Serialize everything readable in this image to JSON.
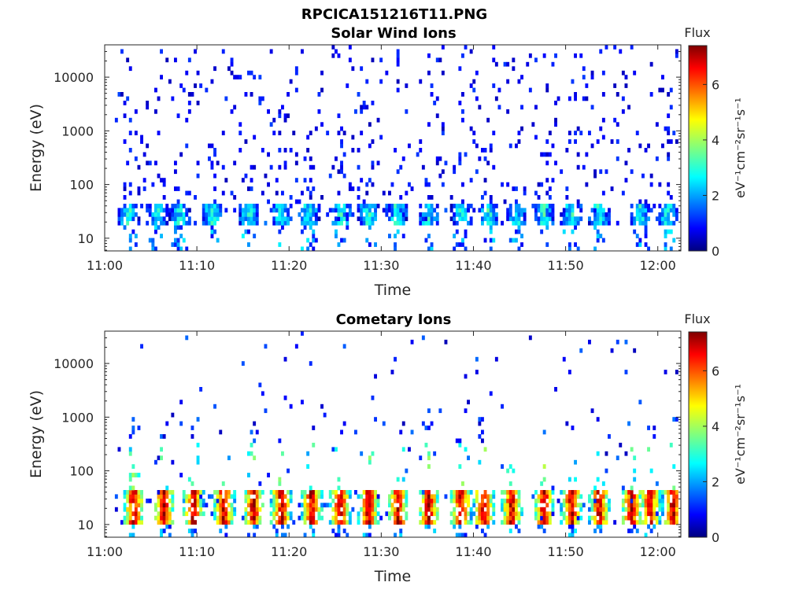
{
  "figure_title": "RPCICA151216T11.PNG",
  "chart_data": [
    {
      "type": "heatmap",
      "title": "Solar Wind Ions",
      "xlabel": "Time",
      "ylabel": "Energy (eV)",
      "x_ticks": [
        "11:00",
        "11:10",
        "11:20",
        "11:30",
        "11:40",
        "11:50",
        "12:00"
      ],
      "y_ticks": [
        "10",
        "100",
        "1000",
        "10000"
      ],
      "y_scale": "log",
      "ylim": [
        5.8,
        40000
      ],
      "xlim_minutes": [
        0,
        62.5
      ],
      "data_xrange_minutes": [
        1.1,
        62.2
      ],
      "colorbar": {
        "title": "Flux",
        "label": "eV⁻¹cm⁻²sr⁻¹s⁻¹",
        "ticks": [
          "0",
          "2",
          "4",
          "6"
        ],
        "range": [
          0,
          7.4
        ],
        "colormap": "jet"
      },
      "bursts_minutes": [
        2.5,
        5.5,
        8,
        11.5,
        15.5,
        19,
        22,
        25.5,
        28.5,
        31.5,
        35,
        38.5,
        41.5,
        44.5,
        47.5,
        50.5,
        53.5,
        58,
        61
      ],
      "low_band_ev": [
        15,
        40
      ],
      "low_band_level": 2.2,
      "seed": 17
    },
    {
      "type": "heatmap",
      "title": "Cometary Ions",
      "xlabel": "Time",
      "ylabel": "Energy (eV)",
      "x_ticks": [
        "11:00",
        "11:10",
        "11:20",
        "11:30",
        "11:40",
        "11:50",
        "12:00"
      ],
      "y_ticks": [
        "10",
        "100",
        "1000",
        "10000"
      ],
      "y_scale": "log",
      "ylim": [
        5.8,
        40000
      ],
      "xlim_minutes": [
        0,
        62.5
      ],
      "data_xrange_minutes": [
        1.1,
        62.2
      ],
      "colorbar": {
        "title": "Flux",
        "label": "eV⁻¹cm⁻²sr⁻¹s⁻¹",
        "ticks": [
          "0",
          "2",
          "4",
          "6"
        ],
        "range": [
          0,
          7.4
        ],
        "colormap": "jet"
      },
      "bursts_minutes": [
        3,
        6.3,
        9.5,
        12.8,
        16,
        19,
        22.3,
        25.4,
        28.5,
        31.7,
        35,
        38.5,
        41,
        44,
        47.5,
        50.5,
        53.5,
        57,
        59,
        61.5
      ],
      "low_band_ev": [
        10,
        40
      ],
      "low_band_level": 5.5,
      "seed": 91
    }
  ]
}
